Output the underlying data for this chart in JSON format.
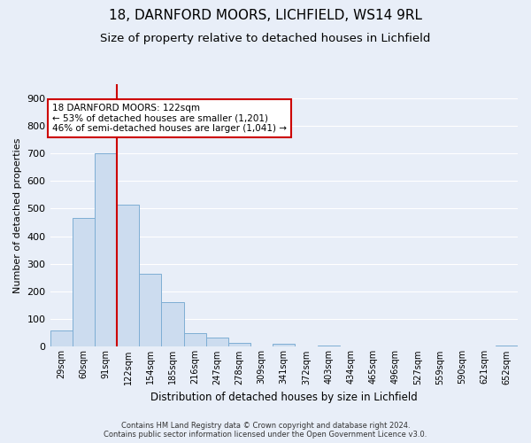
{
  "title": "18, DARNFORD MOORS, LICHFIELD, WS14 9RL",
  "subtitle": "Size of property relative to detached houses in Lichfield",
  "xlabel": "Distribution of detached houses by size in Lichfield",
  "ylabel": "Number of detached properties",
  "bar_labels": [
    "29sqm",
    "60sqm",
    "91sqm",
    "122sqm",
    "154sqm",
    "185sqm",
    "216sqm",
    "247sqm",
    "278sqm",
    "309sqm",
    "341sqm",
    "372sqm",
    "403sqm",
    "434sqm",
    "465sqm",
    "496sqm",
    "527sqm",
    "559sqm",
    "590sqm",
    "621sqm",
    "652sqm"
  ],
  "bar_values": [
    60,
    467,
    700,
    515,
    265,
    160,
    48,
    33,
    15,
    0,
    12,
    0,
    5,
    0,
    0,
    0,
    0,
    0,
    0,
    0,
    5
  ],
  "bar_color": "#ccdcef",
  "bar_edgecolor": "#7eaed4",
  "vline_x_index": 3,
  "vline_color": "#cc0000",
  "ylim": [
    0,
    950
  ],
  "yticks": [
    0,
    100,
    200,
    300,
    400,
    500,
    600,
    700,
    800,
    900
  ],
  "annotation_title": "18 DARNFORD MOORS: 122sqm",
  "annotation_line1": "← 53% of detached houses are smaller (1,201)",
  "annotation_line2": "46% of semi-detached houses are larger (1,041) →",
  "annotation_box_color": "#ffffff",
  "annotation_box_edgecolor": "#cc0000",
  "footer1": "Contains HM Land Registry data © Crown copyright and database right 2024.",
  "footer2": "Contains public sector information licensed under the Open Government Licence v3.0.",
  "background_color": "#e8eef8",
  "grid_color": "#ffffff",
  "title_fontsize": 11,
  "subtitle_fontsize": 9.5
}
